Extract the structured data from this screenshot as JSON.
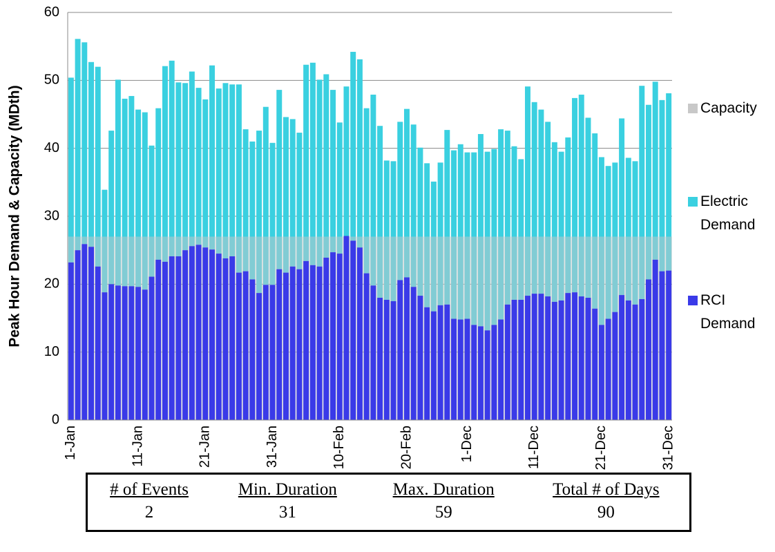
{
  "chart_data": {
    "type": "bar",
    "ylabel": "Peak Hour Demand & Capacity (MDth)",
    "categories": [
      "1-Jan",
      null,
      null,
      null,
      null,
      null,
      null,
      null,
      null,
      null,
      "11-Jan",
      null,
      null,
      null,
      null,
      null,
      null,
      null,
      null,
      null,
      "21-Jan",
      null,
      null,
      null,
      null,
      null,
      null,
      null,
      null,
      null,
      "31-Jan",
      null,
      null,
      null,
      null,
      null,
      null,
      null,
      null,
      null,
      "10-Feb",
      null,
      null,
      null,
      null,
      null,
      null,
      null,
      null,
      null,
      "20-Feb",
      null,
      null,
      null,
      null,
      null,
      null,
      null,
      null,
      "1-Dec",
      null,
      null,
      null,
      null,
      null,
      null,
      null,
      null,
      null,
      "11-Dec",
      null,
      null,
      null,
      null,
      null,
      null,
      null,
      null,
      null,
      "21-Dec",
      null,
      null,
      null,
      null,
      null,
      null,
      null,
      null,
      null,
      "31-Dec"
    ],
    "series": [
      {
        "name": "Capacity",
        "color": "#c8c8c8",
        "stacked": false,
        "values": [
          27,
          27,
          27,
          27,
          27,
          27,
          27,
          27,
          27,
          27,
          27,
          27,
          27,
          27,
          27,
          27,
          27,
          27,
          27,
          27,
          27,
          27,
          27,
          27,
          27,
          27,
          27,
          27,
          27,
          27,
          27,
          27,
          27,
          27,
          27,
          27,
          27,
          27,
          27,
          27,
          27,
          27,
          27,
          27,
          27,
          27,
          27,
          27,
          27,
          27,
          27,
          27,
          27,
          27,
          27,
          27,
          27,
          27,
          27,
          27,
          27,
          27,
          27,
          27,
          27,
          27,
          27,
          27,
          27,
          27,
          27,
          27,
          27,
          27,
          27,
          27,
          27,
          27,
          27,
          27,
          27,
          27,
          27,
          27,
          27,
          27,
          27,
          27,
          27,
          27
        ]
      },
      {
        "name": "Electric Demand",
        "color": "#3ad0e0",
        "stacked": true,
        "values": [
          27.2,
          31.1,
          29.7,
          27.2,
          29.4,
          15.1,
          22.6,
          30.3,
          27.6,
          28.0,
          26.1,
          26.1,
          19.3,
          22.3,
          28.8,
          28.8,
          25.6,
          24.6,
          25.7,
          23.1,
          21.8,
          27.1,
          24.3,
          25.8,
          25.3,
          27.7,
          20.9,
          20.3,
          23.9,
          26.2,
          20.9,
          26.4,
          22.9,
          21.7,
          20.1,
          28.9,
          29.8,
          27.5,
          27.0,
          23.9,
          19.3,
          22.0,
          27.8,
          27.7,
          24.3,
          28.1,
          25.3,
          20.5,
          20.6,
          23.3,
          24.8,
          23.9,
          21.8,
          21.2,
          19.1,
          21.0,
          25.7,
          24.8,
          25.8,
          24.5,
          25.4,
          28.3,
          26.3,
          25.9,
          28.0,
          25.6,
          22.6,
          20.7,
          30.8,
          28.2,
          27.1,
          25.7,
          23.5,
          21.9,
          22.9,
          28.6,
          29.7,
          26.5,
          25.8,
          24.7,
          22.5,
          22.0,
          26.0,
          21.0,
          21.1,
          31.4,
          25.7,
          26.2,
          25.2,
          26.1
        ]
      },
      {
        "name": "RCI Demand",
        "color": "#3a3ae8",
        "stacked": true,
        "values": [
          23.2,
          25.0,
          25.9,
          25.5,
          22.6,
          18.8,
          20.0,
          19.8,
          19.7,
          19.7,
          19.6,
          19.2,
          21.1,
          23.6,
          23.3,
          24.1,
          24.1,
          25.0,
          25.6,
          25.8,
          25.4,
          25.1,
          24.5,
          23.8,
          24.1,
          21.7,
          21.9,
          20.7,
          18.7,
          19.9,
          19.9,
          22.2,
          21.7,
          22.6,
          22.2,
          23.4,
          22.8,
          22.6,
          23.9,
          24.7,
          24.5,
          27.1,
          26.4,
          25.4,
          21.6,
          19.8,
          18.0,
          17.7,
          17.5,
          20.6,
          21.0,
          19.6,
          18.3,
          16.6,
          16.0,
          16.9,
          17.0,
          14.9,
          14.8,
          14.9,
          14.0,
          13.8,
          13.2,
          14.0,
          14.8,
          17.0,
          17.7,
          17.7,
          18.3,
          18.6,
          18.6,
          18.2,
          17.4,
          17.6,
          18.7,
          18.8,
          18.2,
          18.0,
          16.4,
          14.0,
          14.9,
          15.9,
          18.4,
          17.6,
          17.0,
          17.8,
          20.7,
          23.6,
          21.9,
          22.0
        ]
      }
    ],
    "ylim": [
      0,
      60
    ],
    "yticks": [
      0,
      10,
      20,
      30,
      40,
      50,
      60
    ],
    "grid": true,
    "legend": "right"
  },
  "table": {
    "headers": [
      "# of Events",
      "Min. Duration",
      "Max. Duration",
      "Total # of Days"
    ],
    "values": [
      "2",
      "31",
      "59",
      "90"
    ]
  }
}
